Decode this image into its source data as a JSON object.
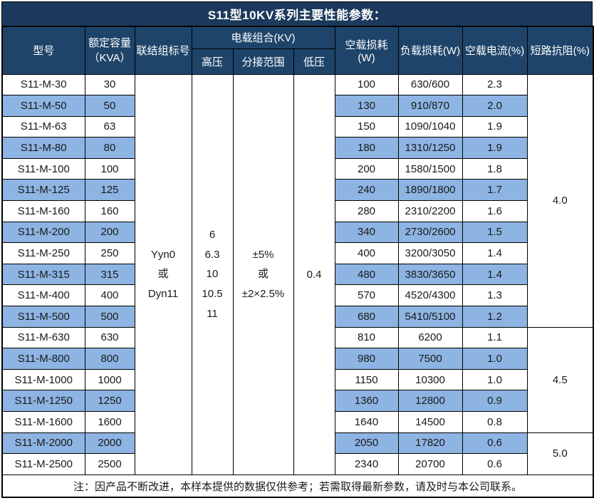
{
  "title": "S11型10KV系列主要性能参数：",
  "header": {
    "model": "型号",
    "capacity_line1": "额定容量",
    "capacity_line2": "（KVA）",
    "vector_group": "联结组标号",
    "voltage_combo": "电载组合(KV)",
    "hv": "高压",
    "tap_range": "分接范围",
    "lv": "低压",
    "no_load_loss": "空载损耗(W)",
    "load_loss": "负载损耗(W)",
    "no_load_current": "空载电流(%)",
    "impedance": "短路抗阻(%)"
  },
  "merged": {
    "vector_group": "Yyn0\n或\nDyn11",
    "hv": "6\n6.3\n10\n10.5\n11",
    "tap_range": "±5%\n或\n±2×2.5%",
    "lv": "0.4"
  },
  "rows": [
    {
      "model": "S11-M-30",
      "kva": "30",
      "no_load_loss": "100",
      "load_loss": "630/600",
      "no_load_current": "2.3"
    },
    {
      "model": "S11-M-50",
      "kva": "50",
      "no_load_loss": "130",
      "load_loss": "910/870",
      "no_load_current": "2.0"
    },
    {
      "model": "S11-M-63",
      "kva": "63",
      "no_load_loss": "150",
      "load_loss": "1090/1040",
      "no_load_current": "1.9"
    },
    {
      "model": "S11-M-80",
      "kva": "80",
      "no_load_loss": "180",
      "load_loss": "1310/1250",
      "no_load_current": "1.9"
    },
    {
      "model": "S11-M-100",
      "kva": "100",
      "no_load_loss": "200",
      "load_loss": "1580/1500",
      "no_load_current": "1.8"
    },
    {
      "model": "S11-M-125",
      "kva": "125",
      "no_load_loss": "240",
      "load_loss": "1890/1800",
      "no_load_current": "1.7"
    },
    {
      "model": "S11-M-160",
      "kva": "160",
      "no_load_loss": "280",
      "load_loss": "2310/2200",
      "no_load_current": "1.6"
    },
    {
      "model": "S11-M-200",
      "kva": "200",
      "no_load_loss": "340",
      "load_loss": "2730/2600",
      "no_load_current": "1.5"
    },
    {
      "model": "S11-M-250",
      "kva": "250",
      "no_load_loss": "400",
      "load_loss": "3200/3050",
      "no_load_current": "1.4"
    },
    {
      "model": "S11-M-315",
      "kva": "315",
      "no_load_loss": "480",
      "load_loss": "3830/3650",
      "no_load_current": "1.4"
    },
    {
      "model": "S11-M-400",
      "kva": "400",
      "no_load_loss": "570",
      "load_loss": "4520/4300",
      "no_load_current": "1.3"
    },
    {
      "model": "S11-M-500",
      "kva": "500",
      "no_load_loss": "680",
      "load_loss": "5410/5100",
      "no_load_current": "1.2"
    },
    {
      "model": "S11-M-630",
      "kva": "630",
      "no_load_loss": "810",
      "load_loss": "6200",
      "no_load_current": "1.1"
    },
    {
      "model": "S11-M-800",
      "kva": "800",
      "no_load_loss": "980",
      "load_loss": "7500",
      "no_load_current": "1.0"
    },
    {
      "model": "S11-M-1000",
      "kva": "1000",
      "no_load_loss": "1150",
      "load_loss": "10300",
      "no_load_current": "1.0"
    },
    {
      "model": "S11-M-1250",
      "kva": "1250",
      "no_load_loss": "1360",
      "load_loss": "12800",
      "no_load_current": "0.9"
    },
    {
      "model": "S11-M-1600",
      "kva": "1600",
      "no_load_loss": "1640",
      "load_loss": "14500",
      "no_load_current": "0.8"
    },
    {
      "model": "S11-M-2000",
      "kva": "2000",
      "no_load_loss": "2050",
      "load_loss": "17820",
      "no_load_current": "0.6"
    },
    {
      "model": "S11-M-2500",
      "kva": "2500",
      "no_load_loss": "2340",
      "load_loss": "20700",
      "no_load_current": "0.6"
    }
  ],
  "impedance_groups": [
    {
      "value": "4.0",
      "rows": 12
    },
    {
      "value": "4.5",
      "rows": 5
    },
    {
      "value": "5.0",
      "rows": 2
    }
  ],
  "note": "注：因产品不断改进，本样本提供的数据仅供参考；若需取得最新参数，请及时与本公司联系。",
  "colors": {
    "title_bg": "#1b395c",
    "header_bg": "#1f4469",
    "stripe": "#8db4e2",
    "border": "#000000"
  }
}
